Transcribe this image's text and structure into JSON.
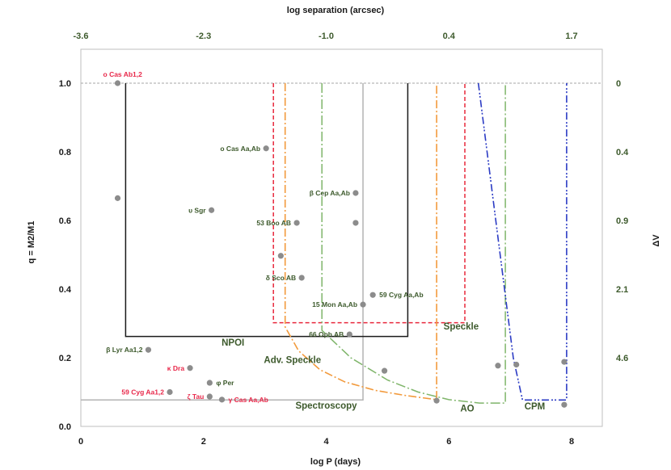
{
  "chart_data": {
    "type": "scatter",
    "title_top": "log separation (arcsec)",
    "xlabel": "log P (days)",
    "ylabel": "q = M2/M1",
    "y2label": "ΔV",
    "xlim": [
      0,
      8.5
    ],
    "ylim": [
      0,
      1.1
    ],
    "x_ticks": [
      "0",
      "2",
      "4",
      "6",
      "8"
    ],
    "x_tick_values": [
      0,
      2,
      4,
      6,
      8
    ],
    "y_ticks": [
      "0.0",
      "0.2",
      "0.4",
      "0.6",
      "0.8",
      "1.0"
    ],
    "y_tick_values": [
      0,
      0.2,
      0.4,
      0.6,
      0.8,
      1.0
    ],
    "top_ticks": [
      {
        "label": "-3.6",
        "x": 0
      },
      {
        "label": "-2.3",
        "x": 2
      },
      {
        "label": "-1.0",
        "x": 4
      },
      {
        "label": "0.4",
        "x": 6
      },
      {
        "label": "1.7",
        "x": 8
      }
    ],
    "right_ticks": [
      {
        "label": "0",
        "q": 1.0
      },
      {
        "label": "0.4",
        "q": 0.8
      },
      {
        "label": "0.9",
        "q": 0.6
      },
      {
        "label": "2.1",
        "q": 0.4
      },
      {
        "label": "4.6",
        "q": 0.2
      }
    ],
    "colors": {
      "point": "#8c8c8c",
      "label_green": "#3d5a2c",
      "label_red": "#e8284a",
      "npoi": "#1a1a1a",
      "speckle": "#e8283c",
      "adv_speckle": "#f29a3c",
      "ao": "#7fb56a",
      "cpm": "#2b3bc4",
      "spectroscopy": "#b3b3b3",
      "refline": "#a6a6a6",
      "region_text": "#3d5a2c"
    },
    "points": [
      {
        "x": 0.6,
        "y": 1.0,
        "label": "o Cas Ab1,2",
        "color": "red",
        "anchor": "above"
      },
      {
        "x": 0.6,
        "y": 0.665,
        "label": "",
        "color": "green",
        "anchor": "none"
      },
      {
        "x": 3.02,
        "y": 0.81,
        "label": "o Cas Aa,Ab",
        "color": "green",
        "anchor": "left"
      },
      {
        "x": 2.13,
        "y": 0.63,
        "label": "υ Sgr",
        "color": "green",
        "anchor": "left"
      },
      {
        "x": 4.48,
        "y": 0.68,
        "label": "β Cep Aa,Ab",
        "color": "green",
        "anchor": "left"
      },
      {
        "x": 3.52,
        "y": 0.593,
        "label": "53 Boo AB",
        "color": "green",
        "anchor": "left"
      },
      {
        "x": 4.48,
        "y": 0.593,
        "label": "",
        "color": "green",
        "anchor": "none"
      },
      {
        "x": 3.26,
        "y": 0.497,
        "label": "",
        "color": "green",
        "anchor": "none"
      },
      {
        "x": 3.6,
        "y": 0.433,
        "label": "δ Sco AB",
        "color": "green",
        "anchor": "left"
      },
      {
        "x": 4.76,
        "y": 0.383,
        "label": "59 Cyg Aa,Ab",
        "color": "green",
        "anchor": "right"
      },
      {
        "x": 4.6,
        "y": 0.355,
        "label": "15 Mon Aa,Ab",
        "color": "green",
        "anchor": "left"
      },
      {
        "x": 4.38,
        "y": 0.268,
        "label": "66 Oph AB",
        "color": "green",
        "anchor": "left"
      },
      {
        "x": 1.1,
        "y": 0.223,
        "label": "β Lyr Aa1,2",
        "color": "green",
        "anchor": "left"
      },
      {
        "x": 1.78,
        "y": 0.17,
        "label": "κ Dra",
        "color": "red",
        "anchor": "left"
      },
      {
        "x": 2.1,
        "y": 0.127,
        "label": "φ Per",
        "color": "green",
        "anchor": "right"
      },
      {
        "x": 1.45,
        "y": 0.1,
        "label": "59 Cyg Aa1,2",
        "color": "red",
        "anchor": "left"
      },
      {
        "x": 2.1,
        "y": 0.087,
        "label": "ζ Tau",
        "color": "red",
        "anchor": "left"
      },
      {
        "x": 2.3,
        "y": 0.078,
        "label": "γ Cas Aa,Ab",
        "color": "red",
        "anchor": "right"
      },
      {
        "x": 4.95,
        "y": 0.162,
        "label": "",
        "color": "green",
        "anchor": "none"
      },
      {
        "x": 5.8,
        "y": 0.075,
        "label": "",
        "color": "green",
        "anchor": "none"
      },
      {
        "x": 6.8,
        "y": 0.177,
        "label": "",
        "color": "green",
        "anchor": "none"
      },
      {
        "x": 7.1,
        "y": 0.18,
        "label": "",
        "color": "green",
        "anchor": "none"
      },
      {
        "x": 7.88,
        "y": 0.188,
        "label": "",
        "color": "green",
        "anchor": "none"
      },
      {
        "x": 7.88,
        "y": 0.063,
        "label": "",
        "color": "green",
        "anchor": "none"
      }
    ],
    "regions": [
      {
        "name": "NPOI",
        "style": "npoi",
        "label_at": [
          2.48,
          0.235
        ]
      },
      {
        "name": "Speckle",
        "style": "speckle",
        "label_at": [
          6.2,
          0.282
        ]
      },
      {
        "name": "Adv. Speckle",
        "style": "adv_speckle",
        "label_at": [
          3.45,
          0.185
        ]
      },
      {
        "name": "AO",
        "style": "ao",
        "label_at": [
          6.3,
          0.044
        ]
      },
      {
        "name": "CPM",
        "style": "cpm",
        "label_at": [
          7.4,
          0.05
        ]
      },
      {
        "name": "Spectroscopy",
        "style": "spectroscopy",
        "label_at": [
          4.0,
          0.052
        ]
      }
    ]
  }
}
